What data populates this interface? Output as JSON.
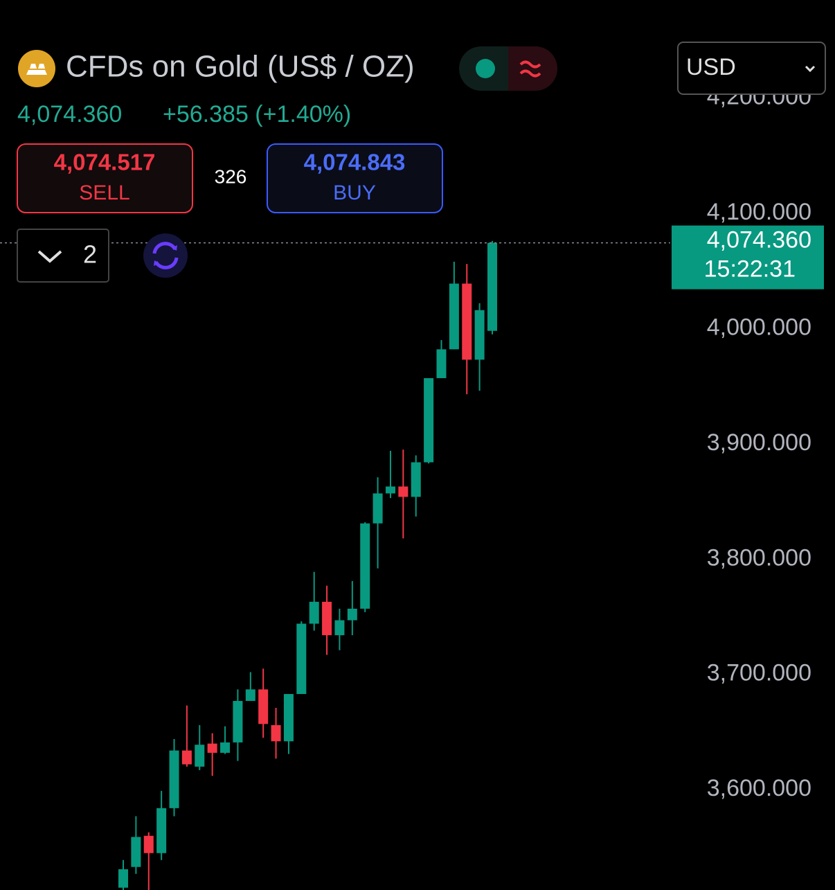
{
  "header": {
    "title": "CFDs on Gold (US$ / OZ)",
    "price": "4,074.360",
    "change": "+56.385 (+1.40%)",
    "sell_price": "4,074.517",
    "sell": "SELL",
    "spread": "326",
    "buy_price": "4,074.843",
    "buy": "BUY",
    "quantity": "2",
    "currency": "USD"
  },
  "chart_data": {
    "type": "candlestick",
    "up_color": "#089981",
    "down_color": "#f23645",
    "ylim": [
      3513,
      4285
    ],
    "yticks": [
      {
        "value": 3600,
        "label": "3,600.000"
      },
      {
        "value": 3700,
        "label": "3,700.000"
      },
      {
        "value": 3800,
        "label": "3,800.000"
      },
      {
        "value": 3900,
        "label": "3,900.000"
      },
      {
        "value": 4000,
        "label": "4,000.000"
      },
      {
        "value": 4100,
        "label": "4,100.000"
      },
      {
        "value": 4200,
        "label": "4,200.000"
      }
    ],
    "open": [
      3515,
      3533,
      3560,
      3545,
      3584,
      3634,
      3620,
      3640,
      3632,
      3641,
      3677,
      3687,
      3656,
      3642,
      3683,
      3744,
      3763,
      3734,
      3747,
      3757,
      3831,
      3857,
      3863,
      3854,
      3884,
      3957,
      3982,
      4039,
      3973,
      3998
    ],
    "high": [
      3539,
      3577,
      3563,
      3599,
      3644,
      3673,
      3656,
      3649,
      3655,
      3687,
      3702,
      3705,
      3671,
      3683,
      3746,
      3789,
      3777,
      3757,
      3781,
      3832,
      3871,
      3894,
      3895,
      3890,
      3957,
      3990,
      4058,
      4056,
      4022,
      4076
    ],
    "low": [
      3513,
      3527,
      3513,
      3539,
      3577,
      3620,
      3617,
      3612,
      3631,
      3625,
      3677,
      3645,
      3627,
      3631,
      3683,
      3738,
      3717,
      3721,
      3734,
      3754,
      3792,
      3853,
      3818,
      3837,
      3883,
      3957,
      3982,
      3943,
      3946,
      3995
    ],
    "close": [
      3531,
      3559,
      3545,
      3584,
      3634,
      3622,
      3639,
      3632,
      3641,
      3677,
      3687,
      3657,
      3642,
      3683,
      3744,
      3763,
      3734,
      3747,
      3757,
      3831,
      3857,
      3863,
      3854,
      3884,
      3957,
      3982,
      4039,
      3973,
      4016,
      4074.36
    ],
    "price_line": {
      "value": 4074.36,
      "label": "4,074.360",
      "countdown": "15:22:31"
    }
  }
}
